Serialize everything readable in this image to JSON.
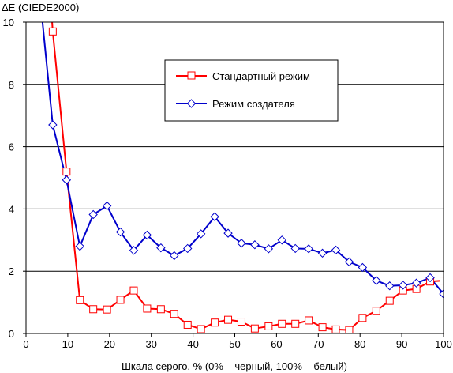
{
  "chart_data": {
    "type": "line",
    "title": "",
    "ylabel": "ΔE (CIEDE2000)",
    "xlabel": "Шкала серого, % (0% – черный, 100% – белый)",
    "xlim": [
      0,
      100
    ],
    "ylim": [
      0,
      10
    ],
    "xticks": [
      0,
      10,
      20,
      30,
      40,
      50,
      60,
      70,
      80,
      90,
      100
    ],
    "yticks": [
      0,
      2,
      4,
      6,
      8,
      10
    ],
    "grid": "horizontal",
    "legend_position": "top-right",
    "series": [
      {
        "name": "Стандартный режим",
        "color": "#ff0000",
        "marker": "square",
        "x": [
          3.2,
          6.4,
          9.7,
          12.9,
          16.1,
          19.4,
          22.6,
          25.8,
          29.0,
          32.3,
          35.5,
          38.7,
          41.9,
          45.2,
          48.4,
          51.6,
          54.8,
          58.1,
          61.3,
          64.5,
          67.7,
          71.0,
          74.2,
          77.4,
          80.6,
          83.9,
          87.1,
          90.3,
          93.5,
          96.8,
          100.0
        ],
        "values": [
          16.0,
          9.7,
          5.2,
          1.07,
          0.78,
          0.77,
          1.08,
          1.38,
          0.8,
          0.78,
          0.63,
          0.28,
          0.14,
          0.35,
          0.44,
          0.38,
          0.16,
          0.23,
          0.31,
          0.31,
          0.42,
          0.2,
          0.13,
          0.11,
          0.5,
          0.73,
          1.05,
          1.38,
          1.43,
          1.67,
          1.7
        ]
      },
      {
        "name": "Режим создателя",
        "color": "#0000cc",
        "marker": "diamond",
        "x": [
          3.2,
          6.4,
          9.7,
          12.9,
          16.1,
          19.4,
          22.6,
          25.8,
          29.0,
          32.3,
          35.5,
          38.7,
          41.9,
          45.2,
          48.4,
          51.6,
          54.8,
          58.1,
          61.3,
          64.5,
          67.7,
          71.0,
          74.2,
          77.4,
          80.6,
          83.9,
          87.1,
          90.3,
          93.5,
          96.8,
          100.0
        ],
        "values": [
          11.0,
          6.7,
          4.93,
          2.8,
          3.82,
          4.1,
          3.26,
          2.67,
          3.16,
          2.75,
          2.5,
          2.73,
          3.2,
          3.75,
          3.22,
          2.9,
          2.85,
          2.72,
          3.0,
          2.73,
          2.72,
          2.58,
          2.68,
          2.3,
          2.12,
          1.7,
          1.53,
          1.55,
          1.62,
          1.79,
          1.27
        ]
      }
    ]
  }
}
